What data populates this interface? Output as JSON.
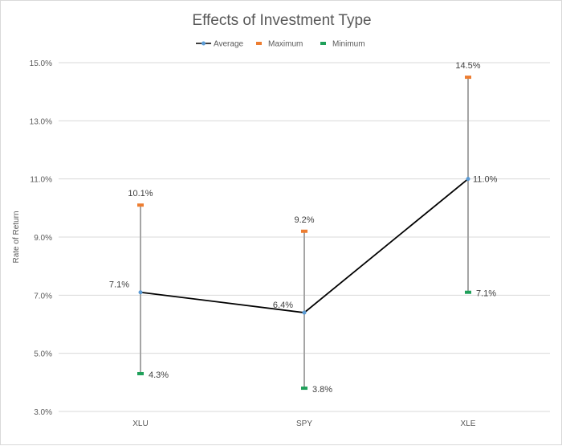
{
  "chart_data": {
    "type": "line",
    "title": "Effects of Investment Type",
    "xlabel": "",
    "ylabel": "Rate of Return",
    "categories": [
      "XLU",
      "SPY",
      "XLE"
    ],
    "ylim": [
      3.0,
      15.0
    ],
    "yticks": [
      "3.0%",
      "5.0%",
      "7.0%",
      "9.0%",
      "11.0%",
      "13.0%",
      "15.0%"
    ],
    "ytick_values": [
      3,
      5,
      7,
      9,
      11,
      13,
      15
    ],
    "grid": true,
    "legend_position": "top",
    "high_low_lines": true,
    "series": [
      {
        "name": "Average",
        "values": [
          7.1,
          6.4,
          11.0
        ],
        "labels": [
          "7.1%",
          "6.4%",
          "11.0%"
        ],
        "color": "#000000",
        "marker_color": "#5B9BD5"
      },
      {
        "name": "Maximum",
        "values": [
          10.1,
          9.2,
          14.5
        ],
        "labels": [
          "10.1%",
          "9.2%",
          "14.5%"
        ],
        "color": "#ED7D31"
      },
      {
        "name": "Minimum",
        "values": [
          4.3,
          3.8,
          7.1
        ],
        "labels": [
          "4.3%",
          "3.8%",
          "7.1%"
        ],
        "color": "#1FA05A"
      }
    ],
    "high_low_color": "#A5A5A5"
  }
}
